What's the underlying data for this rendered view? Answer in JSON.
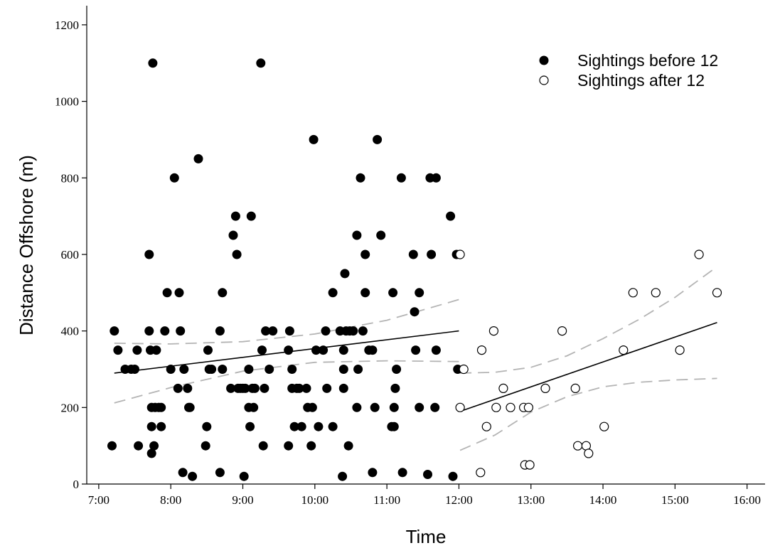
{
  "chart_data": {
    "type": "scatter",
    "title": "",
    "xlabel": "Time",
    "ylabel": "Distance Offshore (m)",
    "xlim": [
      "6:50",
      "16:15"
    ],
    "ylim": [
      0,
      1250
    ],
    "x_ticks": [
      "7:00",
      "8:00",
      "9:00",
      "10:00",
      "11:00",
      "12:00",
      "13:00",
      "14:00",
      "15:00",
      "16:00"
    ],
    "y_ticks": [
      0,
      200,
      400,
      600,
      800,
      1000,
      1200
    ],
    "legend_position": "top-right",
    "grid": false,
    "series": [
      {
        "name": "Sightings before 12",
        "marker": "filled-circle",
        "color": "#000000",
        "points": [
          [
            "7:11",
            100
          ],
          [
            "7:13",
            400
          ],
          [
            "7:16",
            350
          ],
          [
            "7:22",
            300
          ],
          [
            "7:27",
            300
          ],
          [
            "7:30",
            300
          ],
          [
            "7:32",
            350
          ],
          [
            "7:33",
            100
          ],
          [
            "7:42",
            600
          ],
          [
            "7:42",
            400
          ],
          [
            "7:43",
            350
          ],
          [
            "7:44",
            200
          ],
          [
            "7:44",
            150
          ],
          [
            "7:44",
            80
          ],
          [
            "7:45",
            1100
          ],
          [
            "7:46",
            100
          ],
          [
            "7:47",
            200
          ],
          [
            "7:48",
            350
          ],
          [
            "7:50",
            200
          ],
          [
            "7:52",
            150
          ],
          [
            "7:52",
            200
          ],
          [
            "7:55",
            400
          ],
          [
            "7:57",
            500
          ],
          [
            "8:00",
            300
          ],
          [
            "8:03",
            800
          ],
          [
            "8:06",
            250
          ],
          [
            "8:07",
            500
          ],
          [
            "8:08",
            400
          ],
          [
            "8:10",
            30
          ],
          [
            "8:11",
            300
          ],
          [
            "8:14",
            250
          ],
          [
            "8:15",
            200
          ],
          [
            "8:16",
            200
          ],
          [
            "8:18",
            20
          ],
          [
            "8:23",
            850
          ],
          [
            "8:29",
            100
          ],
          [
            "8:30",
            150
          ],
          [
            "8:31",
            350
          ],
          [
            "8:32",
            300
          ],
          [
            "8:34",
            300
          ],
          [
            "8:41",
            30
          ],
          [
            "8:41",
            400
          ],
          [
            "8:43",
            500
          ],
          [
            "8:43",
            300
          ],
          [
            "8:50",
            250
          ],
          [
            "8:52",
            650
          ],
          [
            "8:54",
            700
          ],
          [
            "8:55",
            600
          ],
          [
            "8:56",
            250
          ],
          [
            "8:58",
            250
          ],
          [
            "9:00",
            250
          ],
          [
            "9:01",
            20
          ],
          [
            "9:02",
            250
          ],
          [
            "9:05",
            300
          ],
          [
            "9:05",
            200
          ],
          [
            "9:06",
            150
          ],
          [
            "9:07",
            700
          ],
          [
            "9:08",
            250
          ],
          [
            "9:09",
            200
          ],
          [
            "9:10",
            250
          ],
          [
            "9:15",
            1100
          ],
          [
            "9:16",
            350
          ],
          [
            "9:17",
            100
          ],
          [
            "9:18",
            250
          ],
          [
            "9:19",
            400
          ],
          [
            "9:22",
            300
          ],
          [
            "9:25",
            400
          ],
          [
            "9:38",
            100
          ],
          [
            "9:38",
            350
          ],
          [
            "9:39",
            400
          ],
          [
            "9:41",
            300
          ],
          [
            "9:41",
            250
          ],
          [
            "9:43",
            150
          ],
          [
            "9:45",
            250
          ],
          [
            "9:47",
            250
          ],
          [
            "9:49",
            150
          ],
          [
            "9:53",
            250
          ],
          [
            "9:54",
            200
          ],
          [
            "9:57",
            100
          ],
          [
            "9:58",
            200
          ],
          [
            "9:59",
            900
          ],
          [
            "10:01",
            350
          ],
          [
            "10:03",
            150
          ],
          [
            "10:07",
            350
          ],
          [
            "10:09",
            400
          ],
          [
            "10:10",
            250
          ],
          [
            "10:15",
            150
          ],
          [
            "10:15",
            500
          ],
          [
            "10:21",
            400
          ],
          [
            "10:23",
            20
          ],
          [
            "10:24",
            250
          ],
          [
            "10:24",
            350
          ],
          [
            "10:24",
            300
          ],
          [
            "10:25",
            550
          ],
          [
            "10:26",
            400
          ],
          [
            "10:28",
            100
          ],
          [
            "10:29",
            400
          ],
          [
            "10:32",
            400
          ],
          [
            "10:35",
            650
          ],
          [
            "10:35",
            200
          ],
          [
            "10:36",
            300
          ],
          [
            "10:38",
            800
          ],
          [
            "10:40",
            400
          ],
          [
            "10:42",
            500
          ],
          [
            "10:42",
            600
          ],
          [
            "10:45",
            350
          ],
          [
            "10:48",
            350
          ],
          [
            "10:48",
            30
          ],
          [
            "10:50",
            200
          ],
          [
            "10:52",
            900
          ],
          [
            "10:55",
            650
          ],
          [
            "11:04",
            150
          ],
          [
            "11:05",
            500
          ],
          [
            "11:06",
            150
          ],
          [
            "11:06",
            200
          ],
          [
            "11:07",
            250
          ],
          [
            "11:08",
            300
          ],
          [
            "11:12",
            800
          ],
          [
            "11:13",
            30
          ],
          [
            "11:22",
            600
          ],
          [
            "11:23",
            450
          ],
          [
            "11:24",
            350
          ],
          [
            "11:27",
            200
          ],
          [
            "11:27",
            500
          ],
          [
            "11:34",
            25
          ],
          [
            "11:36",
            800
          ],
          [
            "11:37",
            600
          ],
          [
            "11:40",
            200
          ],
          [
            "11:41",
            350
          ],
          [
            "11:41",
            800
          ],
          [
            "11:53",
            700
          ],
          [
            "11:55",
            20
          ],
          [
            "11:58",
            600
          ],
          [
            "11:59",
            300
          ]
        ]
      },
      {
        "name": "Sightings after 12",
        "marker": "open-circle",
        "color": "#000000",
        "points": [
          [
            "12:01",
            600
          ],
          [
            "12:01",
            200
          ],
          [
            "12:04",
            300
          ],
          [
            "12:18",
            30
          ],
          [
            "12:19",
            350
          ],
          [
            "12:23",
            150
          ],
          [
            "12:29",
            400
          ],
          [
            "12:31",
            200
          ],
          [
            "12:37",
            250
          ],
          [
            "12:43",
            200
          ],
          [
            "12:54",
            200
          ],
          [
            "12:55",
            50
          ],
          [
            "12:58",
            200
          ],
          [
            "12:59",
            50
          ],
          [
            "13:12",
            250
          ],
          [
            "13:26",
            400
          ],
          [
            "13:37",
            250
          ],
          [
            "13:39",
            100
          ],
          [
            "13:46",
            100
          ],
          [
            "13:48",
            80
          ],
          [
            "14:01",
            150
          ],
          [
            "14:17",
            350
          ],
          [
            "14:25",
            500
          ],
          [
            "14:44",
            500
          ],
          [
            "15:04",
            350
          ],
          [
            "15:20",
            600
          ],
          [
            "15:35",
            500
          ]
        ]
      }
    ],
    "fit_lines": [
      {
        "series": "Sightings before 12",
        "style": "solid",
        "points": [
          [
            "7:13",
            290
          ],
          [
            "12:00",
            400
          ]
        ]
      },
      {
        "series": "Sightings before 12",
        "style": "dashed-ci-upper",
        "points": [
          [
            "7:13",
            368
          ],
          [
            "8:00",
            366
          ],
          [
            "9:00",
            372
          ],
          [
            "10:00",
            392
          ],
          [
            "11:00",
            428
          ],
          [
            "12:00",
            482
          ]
        ]
      },
      {
        "series": "Sightings before 12",
        "style": "dashed-ci-lower",
        "points": [
          [
            "7:13",
            212
          ],
          [
            "8:00",
            252
          ],
          [
            "9:00",
            295
          ],
          [
            "10:00",
            318
          ],
          [
            "11:00",
            322
          ],
          [
            "12:00",
            320
          ]
        ]
      },
      {
        "series": "Sightings after 12",
        "style": "solid",
        "points": [
          [
            "12:01",
            190
          ],
          [
            "15:35",
            422
          ]
        ]
      },
      {
        "series": "Sightings after 12",
        "style": "dashed-ci-upper",
        "points": [
          [
            "12:01",
            290
          ],
          [
            "12:30",
            292
          ],
          [
            "13:00",
            305
          ],
          [
            "13:30",
            335
          ],
          [
            "14:00",
            380
          ],
          [
            "14:30",
            430
          ],
          [
            "15:00",
            488
          ],
          [
            "15:35",
            568
          ]
        ]
      },
      {
        "series": "Sightings after 12",
        "style": "dashed-ci-lower",
        "points": [
          [
            "12:01",
            88
          ],
          [
            "12:30",
            128
          ],
          [
            "13:00",
            188
          ],
          [
            "13:30",
            228
          ],
          [
            "14:00",
            254
          ],
          [
            "14:30",
            266
          ],
          [
            "15:00",
            272
          ],
          [
            "15:35",
            276
          ]
        ]
      }
    ]
  }
}
